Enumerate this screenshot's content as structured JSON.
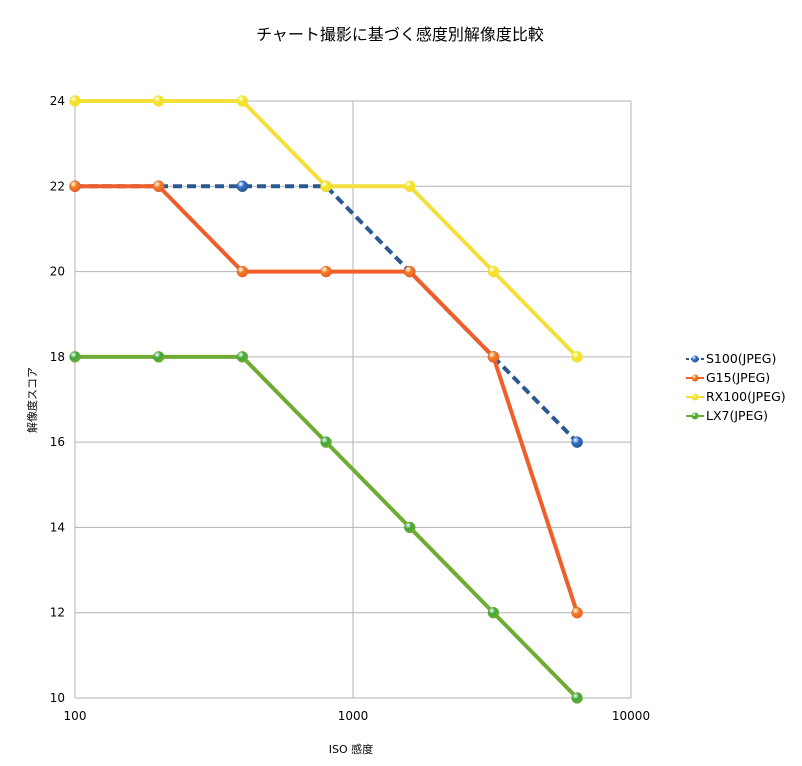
{
  "chart_data": {
    "type": "line",
    "title": "チャート撮影に基づく感度別解像度比較",
    "xlabel": "ISO 感度",
    "ylabel": "解像度スコア",
    "x_scale": "log",
    "xlim": [
      100,
      10000
    ],
    "ylim": [
      10,
      24
    ],
    "x_ticks": [
      100,
      1000,
      10000
    ],
    "x_tick_labels": [
      "100",
      "1000",
      "10000"
    ],
    "y_ticks": [
      10,
      12,
      14,
      16,
      18,
      20,
      22,
      24
    ],
    "y_tick_labels": [
      "10",
      "12",
      "14",
      "16",
      "18",
      "20",
      "22",
      "24"
    ],
    "grid": true,
    "legend_position": "right",
    "x": [
      100,
      200,
      400,
      800,
      1600,
      3200,
      6400
    ],
    "series": [
      {
        "name": "S100(JPEG)",
        "values": [
          22,
          22,
          22,
          22,
          20,
          18,
          16
        ],
        "color": "#2b5a8e",
        "marker_color": "#2f6fd0",
        "dashed": true
      },
      {
        "name": "G15(JPEG)",
        "values": [
          22,
          22,
          20,
          20,
          20,
          18,
          12
        ],
        "color": "#ef5e2b",
        "marker_color": "#f07f1f",
        "dashed": false
      },
      {
        "name": "RX100(JPEG)",
        "values": [
          24,
          24,
          24,
          22,
          22,
          20,
          18
        ],
        "color": "#f4df3c",
        "marker_color": "#f2e420",
        "dashed": false
      },
      {
        "name": "LX7(JPEG)",
        "values": [
          18,
          18,
          18,
          16,
          14,
          12,
          10
        ],
        "color": "#6fac34",
        "marker_color": "#3aa83a",
        "dashed": false
      }
    ]
  }
}
